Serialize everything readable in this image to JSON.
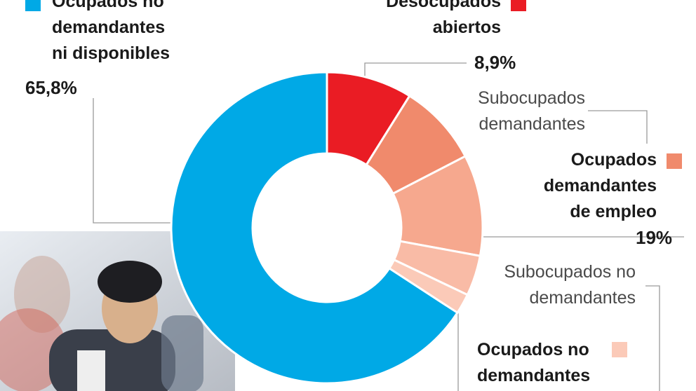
{
  "chart_data": {
    "type": "pie",
    "donut": true,
    "start": "top, clockwise",
    "categories": [
      "Desocupados abiertos",
      "Subocupados demandantes",
      "Ocupados demandantes de empleo",
      "Subocupados no demandantes",
      "Ocupados no demandantes",
      "Ocupados no demandantes ni disponibles"
    ],
    "values": [
      8.9,
      8.5,
      10.5,
      4.2,
      2.1,
      65.8
    ],
    "colors": [
      "#ea1c24",
      "#f08a6c",
      "#f6a88e",
      "#f9bba6",
      "#fbcab8",
      "#00a9e6"
    ],
    "labels": {
      "ocupados_no_disp": [
        "Ocupados no",
        "demandantes",
        "ni disponibles"
      ],
      "ocupados_no_disp_value": "65,8%",
      "desocupados": [
        "Desocupados",
        "abiertos"
      ],
      "desocupados_value": "8,9%",
      "subocupados_dem": [
        "Subocupados",
        "demandantes"
      ],
      "ocupados_dem": [
        "Ocupados",
        "demandantes",
        "de empleo"
      ],
      "ocupados_dem_value": "19%",
      "subocupados_no_dem": [
        "Subocupados no",
        "demandantes"
      ],
      "ocupados_no_dem": [
        "Ocupados no",
        "demandantes"
      ]
    }
  }
}
